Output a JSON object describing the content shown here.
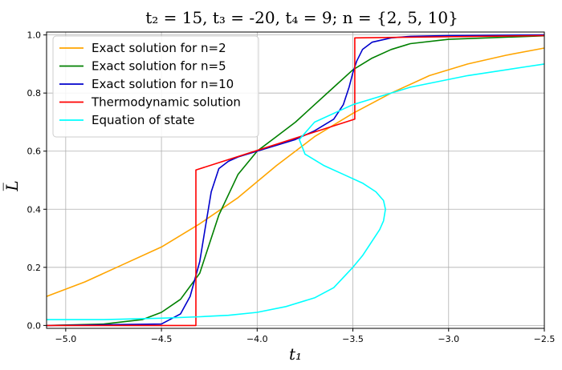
{
  "chart_data": {
    "type": "line",
    "title": "t₂ = 15,  t₃ = -20,  t₄ = 9;  n = {2, 5, 10}",
    "xlabel": "t₁",
    "ylabel": "L̅",
    "xlim": [
      -5.1,
      -2.5
    ],
    "ylim": [
      -0.01,
      1.01
    ],
    "xticks": [
      -5.0,
      -4.5,
      -4.0,
      -3.5,
      -3.0,
      -2.5
    ],
    "xtick_labels": [
      "−5.0",
      "−4.5",
      "−4.0",
      "−3.5",
      "−3.0",
      "−2.5"
    ],
    "yticks": [
      0.0,
      0.2,
      0.4,
      0.6,
      0.8,
      1.0
    ],
    "ytick_labels": [
      "0.0",
      "0.2",
      "0.4",
      "0.6",
      "0.8",
      "1.0"
    ],
    "grid": true,
    "legend_position": "top-left",
    "series": [
      {
        "name": "Exact solution for n=2",
        "color": "#ffa500",
        "x": [
          -5.1,
          -4.9,
          -4.7,
          -4.5,
          -4.3,
          -4.1,
          -3.9,
          -3.7,
          -3.5,
          -3.3,
          -3.1,
          -2.9,
          -2.7,
          -2.5
        ],
        "y": [
          0.1,
          0.15,
          0.21,
          0.27,
          0.35,
          0.44,
          0.55,
          0.65,
          0.73,
          0.8,
          0.86,
          0.9,
          0.93,
          0.955
        ]
      },
      {
        "name": "Exact solution for n=5",
        "color": "#008000",
        "x": [
          -5.1,
          -4.8,
          -4.6,
          -4.5,
          -4.4,
          -4.3,
          -4.2,
          -4.1,
          -4.0,
          -3.9,
          -3.8,
          -3.7,
          -3.6,
          -3.5,
          -3.4,
          -3.3,
          -3.2,
          -3.0,
          -2.8,
          -2.5
        ],
        "y": [
          0.0,
          0.005,
          0.02,
          0.045,
          0.09,
          0.18,
          0.38,
          0.52,
          0.6,
          0.65,
          0.7,
          0.76,
          0.82,
          0.88,
          0.92,
          0.95,
          0.97,
          0.985,
          0.99,
          0.997
        ]
      },
      {
        "name": "Exact solution for n=10",
        "color": "#0000cc",
        "x": [
          -5.1,
          -4.5,
          -4.4,
          -4.35,
          -4.3,
          -4.27,
          -4.24,
          -4.2,
          -4.15,
          -4.1,
          -4.0,
          -3.9,
          -3.8,
          -3.7,
          -3.6,
          -3.55,
          -3.52,
          -3.5,
          -3.48,
          -3.45,
          -3.4,
          -3.3,
          -3.2,
          -3.0,
          -2.5
        ],
        "y": [
          0.0,
          0.005,
          0.04,
          0.1,
          0.22,
          0.34,
          0.46,
          0.54,
          0.565,
          0.58,
          0.6,
          0.62,
          0.64,
          0.67,
          0.71,
          0.76,
          0.82,
          0.87,
          0.91,
          0.95,
          0.975,
          0.99,
          0.995,
          0.998,
          1.0
        ]
      },
      {
        "name": "Thermodynamic solution",
        "color": "#ff0000",
        "x": [
          -5.1,
          -4.32,
          -4.32,
          -3.49,
          -3.49,
          -2.5
        ],
        "y": [
          0.0,
          0.0,
          0.535,
          0.71,
          0.99,
          0.998
        ]
      },
      {
        "name": "Equation of state",
        "color": "#00ffff",
        "x": [
          -5.1,
          -4.8,
          -4.5,
          -4.3,
          -4.15,
          -4.0,
          -3.85,
          -3.7,
          -3.6,
          -3.5,
          -3.45,
          -3.4,
          -3.36,
          -3.34,
          -3.33,
          -3.34,
          -3.38,
          -3.45,
          -3.55,
          -3.65,
          -3.75,
          -3.78,
          -3.7,
          -3.5,
          -3.2,
          -2.9,
          -2.6,
          -2.5
        ],
        "y": [
          0.02,
          0.02,
          0.025,
          0.03,
          0.035,
          0.045,
          0.065,
          0.095,
          0.13,
          0.2,
          0.24,
          0.29,
          0.33,
          0.36,
          0.4,
          0.43,
          0.46,
          0.49,
          0.52,
          0.55,
          0.59,
          0.64,
          0.7,
          0.76,
          0.82,
          0.86,
          0.89,
          0.9
        ]
      }
    ]
  }
}
